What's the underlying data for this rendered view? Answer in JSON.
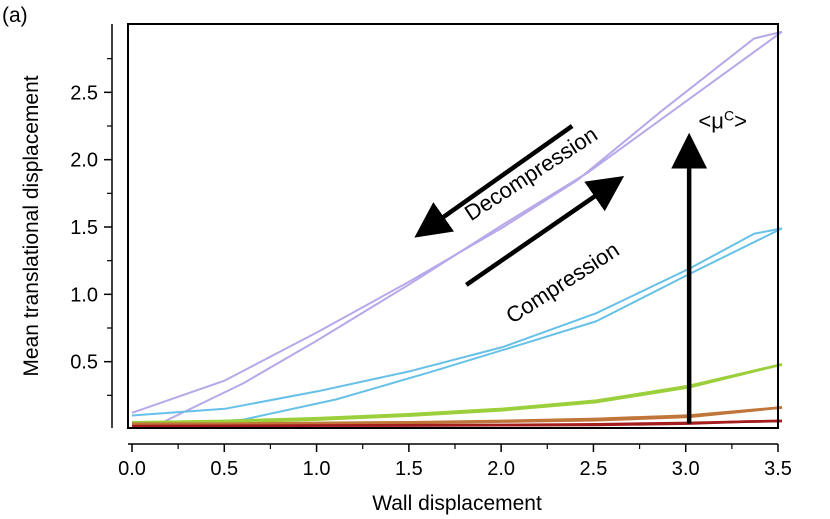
{
  "panel_label": "(a)",
  "chart_data": {
    "type": "line",
    "title": "",
    "xlabel": "Wall displacement",
    "ylabel": "Mean translational displacement",
    "xlim": [
      0,
      3.5
    ],
    "ylim": [
      0,
      3.0
    ],
    "xticks": [
      0.0,
      0.5,
      1.0,
      1.5,
      2.0,
      2.5,
      3.0,
      3.5
    ],
    "xtick_labels": [
      "0.0",
      "0.5",
      "1.0",
      "1.5",
      "2.0",
      "2.5",
      "3.0",
      "3.5"
    ],
    "yticks": [
      0.5,
      1.0,
      1.5,
      2.0,
      2.5
    ],
    "ytick_labels": [
      "0.5",
      "1.0",
      "1.5",
      "2.0",
      "2.5"
    ],
    "grid": false,
    "series": [
      {
        "color": "#b7a8ea",
        "branches": [
          {
            "x": [
              0.15,
              0.6,
              1.0,
              1.5,
              2.0,
              2.45,
              3.0,
              3.5
            ],
            "y": [
              0.04,
              0.34,
              0.66,
              1.08,
              1.52,
              1.9,
              2.45,
              2.95
            ]
          },
          {
            "x": [
              3.5,
              3.35,
              2.85,
              2.4,
              2.0,
              1.5,
              1.0,
              0.5,
              0.0
            ],
            "y": [
              2.95,
              2.9,
              2.36,
              1.85,
              1.5,
              1.1,
              0.72,
              0.36,
              0.12
            ]
          }
        ]
      },
      {
        "color": "#66c0e8",
        "branches": [
          {
            "x": [
              0.15,
              0.6,
              1.1,
              1.6,
              2.1,
              2.5,
              3.0,
              3.5
            ],
            "y": [
              0.03,
              0.07,
              0.22,
              0.42,
              0.63,
              0.8,
              1.15,
              1.49
            ]
          },
          {
            "x": [
              3.5,
              3.35,
              3.0,
              2.5,
              2.0,
              1.5,
              1.0,
              0.5,
              0.0
            ],
            "y": [
              1.49,
              1.45,
              1.19,
              0.86,
              0.61,
              0.43,
              0.28,
              0.15,
              0.1
            ]
          }
        ]
      },
      {
        "color": "#9ccf3c",
        "branches": [
          {
            "x": [
              0.0,
              0.5,
              1.0,
              1.5,
              2.0,
              2.5,
              3.0,
              3.5
            ],
            "y": [
              0.03,
              0.05,
              0.07,
              0.1,
              0.14,
              0.2,
              0.31,
              0.48
            ]
          },
          {
            "x": [
              3.5,
              3.0,
              2.5,
              2.0,
              1.5,
              1.0,
              0.5,
              0.0
            ],
            "y": [
              0.48,
              0.32,
              0.21,
              0.15,
              0.11,
              0.08,
              0.06,
              0.05
            ]
          }
        ]
      },
      {
        "color": "#c0763a",
        "branches": [
          {
            "x": [
              0.0,
              0.5,
              1.0,
              1.5,
              2.0,
              2.5,
              3.0,
              3.5
            ],
            "y": [
              0.03,
              0.035,
              0.04,
              0.045,
              0.055,
              0.065,
              0.09,
              0.16
            ]
          },
          {
            "x": [
              3.5,
              3.0,
              2.5,
              2.0,
              1.5,
              1.0,
              0.5,
              0.0
            ],
            "y": [
              0.16,
              0.1,
              0.075,
              0.06,
              0.05,
              0.045,
              0.04,
              0.04
            ]
          }
        ]
      },
      {
        "color": "#a51e1e",
        "branches": [
          {
            "x": [
              0.0,
              0.5,
              1.0,
              1.5,
              2.0,
              2.5,
              3.0,
              3.3,
              3.5
            ],
            "y": [
              0.02,
              0.022,
              0.025,
              0.025,
              0.028,
              0.03,
              0.04,
              0.055,
              0.06
            ]
          },
          {
            "x": [
              3.5,
              3.0,
              2.5,
              2.0,
              1.5,
              1.0,
              0.5,
              0.0
            ],
            "y": [
              0.06,
              0.045,
              0.035,
              0.03,
              0.028,
              0.026,
              0.024,
              0.022
            ]
          }
        ]
      }
    ],
    "annotations": [
      {
        "text": "Decompression",
        "x": 2.17,
        "y": 1.85,
        "angle": -33,
        "arrow_from": [
          2.37,
          2.25
        ],
        "arrow_to": [
          1.55,
          1.45
        ]
      },
      {
        "text": "Compression",
        "x": 2.34,
        "y": 1.04,
        "angle": -33,
        "arrow_from": [
          1.8,
          1.07
        ],
        "arrow_to": [
          2.62,
          1.85
        ]
      },
      {
        "text": "<μ",
        "superscript": "C",
        "tail": ">",
        "x": 3.05,
        "y": 2.23,
        "arrow_from": [
          3.0,
          0.04
        ],
        "arrow_to": [
          3.0,
          2.15
        ]
      }
    ]
  }
}
